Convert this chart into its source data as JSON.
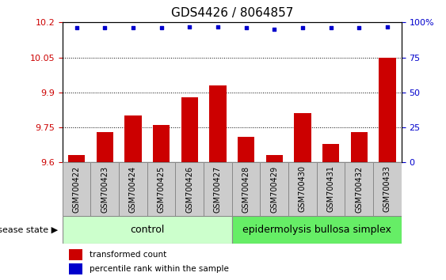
{
  "title": "GDS4426 / 8064857",
  "samples": [
    "GSM700422",
    "GSM700423",
    "GSM700424",
    "GSM700425",
    "GSM700426",
    "GSM700427",
    "GSM700428",
    "GSM700429",
    "GSM700430",
    "GSM700431",
    "GSM700432",
    "GSM700433"
  ],
  "bar_values": [
    9.63,
    9.73,
    9.8,
    9.76,
    9.88,
    9.93,
    9.71,
    9.63,
    9.81,
    9.68,
    9.73,
    10.05
  ],
  "dot_values": [
    96,
    96,
    96,
    96,
    97,
    97,
    96,
    95,
    96,
    96,
    96,
    97
  ],
  "bar_color": "#cc0000",
  "dot_color": "#0000cc",
  "ylim_left": [
    9.6,
    10.2
  ],
  "ylim_right": [
    0,
    100
  ],
  "yticks_left": [
    9.6,
    9.75,
    9.9,
    10.05,
    10.2
  ],
  "yticks_right": [
    0,
    25,
    50,
    75,
    100
  ],
  "ytick_labels_left": [
    "9.6",
    "9.75",
    "9.9",
    "10.05",
    "10.2"
  ],
  "ytick_labels_right": [
    "0",
    "25",
    "50",
    "75",
    "100%"
  ],
  "grid_values": [
    9.75,
    9.9,
    10.05
  ],
  "control_samples": 6,
  "control_label": "control",
  "disease_label": "epidermolysis bullosa simplex",
  "group_label": "disease state",
  "legend_bar_label": "transformed count",
  "legend_dot_label": "percentile rank within the sample",
  "control_color": "#ccffcc",
  "disease_color": "#66ee66",
  "sample_cell_color": "#cccccc",
  "cell_border_color": "#888888",
  "bar_baseline": 9.6,
  "bar_width": 0.6,
  "title_fontsize": 11,
  "tick_fontsize": 8,
  "label_fontsize": 9,
  "sample_fontsize": 7
}
